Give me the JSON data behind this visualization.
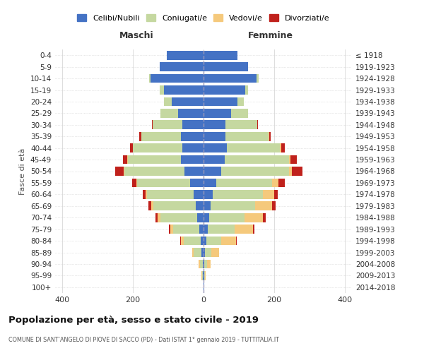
{
  "age_groups": [
    "0-4",
    "5-9",
    "10-14",
    "15-19",
    "20-24",
    "25-29",
    "30-34",
    "35-39",
    "40-44",
    "45-49",
    "50-54",
    "55-59",
    "60-64",
    "65-69",
    "70-74",
    "75-79",
    "80-84",
    "85-89",
    "90-94",
    "95-99",
    "100+"
  ],
  "birth_years": [
    "2014-2018",
    "2009-2013",
    "2004-2008",
    "1999-2003",
    "1994-1998",
    "1989-1993",
    "1984-1988",
    "1979-1983",
    "1974-1978",
    "1969-1973",
    "1964-1968",
    "1959-1963",
    "1954-1958",
    "1949-1953",
    "1944-1948",
    "1939-1943",
    "1934-1938",
    "1929-1933",
    "1924-1928",
    "1919-1923",
    "≤ 1918"
  ],
  "maschi_celibi": [
    105,
    125,
    150,
    112,
    90,
    72,
    60,
    65,
    60,
    65,
    55,
    38,
    28,
    22,
    18,
    12,
    8,
    6,
    3,
    2,
    1
  ],
  "maschi_coniugati": [
    0,
    0,
    5,
    12,
    22,
    50,
    85,
    112,
    140,
    150,
    170,
    150,
    132,
    120,
    105,
    75,
    48,
    22,
    8,
    3,
    0
  ],
  "maschi_vedovi": [
    0,
    0,
    0,
    0,
    0,
    0,
    0,
    0,
    0,
    1,
    1,
    2,
    4,
    6,
    8,
    8,
    8,
    5,
    3,
    1,
    0
  ],
  "maschi_divorziati": [
    0,
    0,
    0,
    0,
    0,
    0,
    2,
    5,
    8,
    12,
    25,
    12,
    8,
    8,
    6,
    4,
    2,
    0,
    0,
    0,
    0
  ],
  "femmine_nubili": [
    95,
    125,
    150,
    118,
    95,
    78,
    62,
    62,
    65,
    60,
    50,
    35,
    25,
    20,
    16,
    12,
    8,
    4,
    2,
    1,
    1
  ],
  "femmine_coniugate": [
    0,
    0,
    5,
    8,
    18,
    48,
    90,
    122,
    150,
    182,
    192,
    158,
    142,
    125,
    100,
    75,
    42,
    18,
    8,
    2,
    0
  ],
  "femmine_vedove": [
    0,
    0,
    0,
    0,
    0,
    0,
    0,
    2,
    4,
    4,
    8,
    18,
    33,
    48,
    52,
    52,
    42,
    22,
    10,
    3,
    0
  ],
  "femmine_divorziate": [
    0,
    0,
    0,
    0,
    0,
    0,
    2,
    4,
    10,
    18,
    30,
    18,
    10,
    10,
    8,
    4,
    2,
    0,
    0,
    0,
    0
  ],
  "colors": {
    "celibi": "#4472c4",
    "coniugati": "#c5d8a0",
    "vedovi": "#f5c97c",
    "divorziati": "#c0211c"
  },
  "xlim": 420,
  "title": "Popolazione per età, sesso e stato civile - 2019",
  "subtitle": "COMUNE DI SANT’ANGELO DI PIOVE DI SACCO (PD) - Dati ISTAT 1° gennaio 2019 - TUTTITALIA.IT",
  "ylabel_left": "Fasce di età",
  "xlabel_maschi": "Maschi",
  "xlabel_femmine": "Femmine",
  "legend_labels": [
    "Celibi/Nubili",
    "Coniugati/e",
    "Vedovi/e",
    "Divorziati/e"
  ]
}
